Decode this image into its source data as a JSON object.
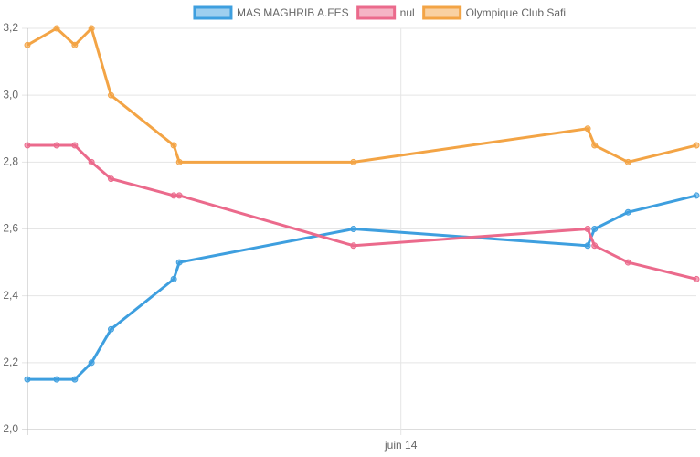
{
  "chart_data": {
    "type": "line",
    "x": [
      -26.8,
      -24.7,
      -23.4,
      -22.2,
      -20.8,
      -16.3,
      -15.9,
      -3.4,
      13.4,
      13.9,
      16.3,
      21.2
    ],
    "xlim": [
      -26.8,
      21.2
    ],
    "xticks": [
      {
        "value": 0,
        "label": "juin 14"
      }
    ],
    "ylim": [
      2,
      3.2
    ],
    "yticks": [
      {
        "value": 2,
        "label": "2,0"
      },
      {
        "value": 2.2,
        "label": "2,2"
      },
      {
        "value": 2.4,
        "label": "2,4"
      },
      {
        "value": 2.6,
        "label": "2,6"
      },
      {
        "value": 2.8,
        "label": "2,8"
      },
      {
        "value": 3,
        "label": "3,0"
      },
      {
        "value": 3.2,
        "label": "3,2"
      }
    ],
    "grid": true,
    "legend": "top",
    "series": [
      {
        "name": "MAS MAGHRIB A.FES",
        "color": "#3e9fdf",
        "values": [
          2.15,
          2.15,
          2.15,
          2.2,
          2.3,
          2.45,
          2.5,
          2.6,
          2.55,
          2.6,
          2.65,
          2.7
        ]
      },
      {
        "name": "nul",
        "color": "#eb6a8c",
        "values": [
          2.85,
          2.85,
          2.85,
          2.8,
          2.75,
          2.7,
          2.7,
          2.55,
          2.6,
          2.55,
          2.5,
          2.45
        ]
      },
      {
        "name": "Olympique Club Safi",
        "color": "#f3a445",
        "values": [
          3.15,
          3.2,
          3.15,
          3.2,
          3.0,
          2.85,
          2.8,
          2.8,
          2.9,
          2.85,
          2.8,
          2.85
        ]
      }
    ]
  }
}
